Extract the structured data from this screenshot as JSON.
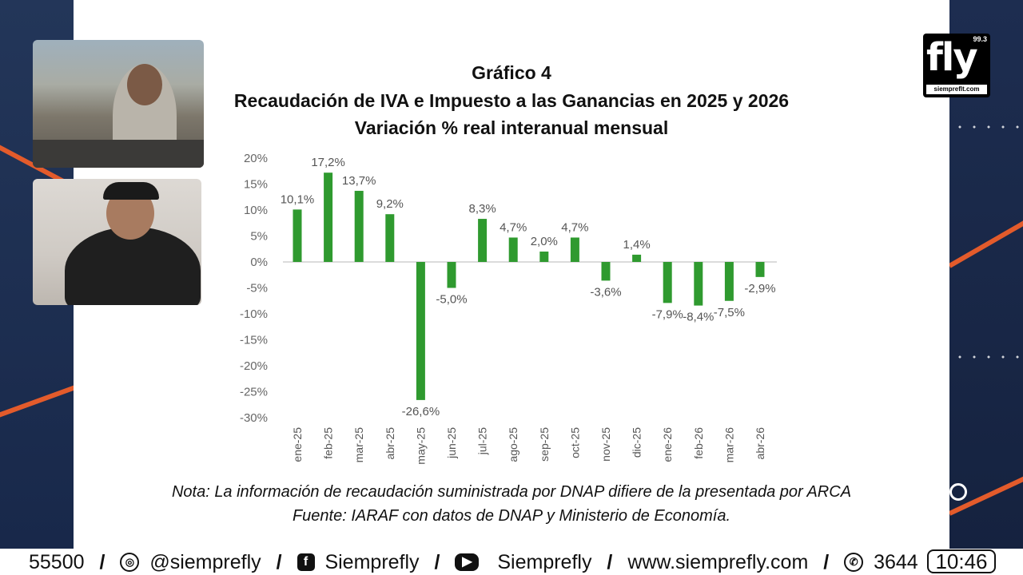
{
  "slide": {
    "title_line1": "Gráfico 4",
    "title_line2": "Recaudación de IVA e Impuesto a las Ganancias en 2025 y 2026",
    "title_line3": "Variación % real interanual mensual",
    "note": "Nota: La información de recaudación suministrada por DNAP difiere de la presentada por ARCA",
    "source": "Fuente: IARAF con datos de DNAP y Ministerio de Economía."
  },
  "chart_data": {
    "type": "bar",
    "title": "Gráfico 4",
    "subtitle": "Recaudación de IVA e Impuesto a las Ganancias en 2025 y 2026 — Variación % real interanual mensual",
    "xlabel": "",
    "ylabel": "",
    "categories": [
      "ene-25",
      "feb-25",
      "mar-25",
      "abr-25",
      "may-25",
      "jun-25",
      "jul-25",
      "ago-25",
      "sep-25",
      "oct-25",
      "nov-25",
      "dic-25",
      "ene-26",
      "feb-26",
      "mar-26",
      "abr-26"
    ],
    "values": [
      10.1,
      17.2,
      13.7,
      9.2,
      -26.6,
      -5.0,
      8.3,
      4.7,
      2.0,
      4.7,
      -3.6,
      1.4,
      -7.9,
      -8.4,
      -7.5,
      -2.9
    ],
    "data_labels": [
      "10,1%",
      "17,2%",
      "13,7%",
      "9,2%",
      "-26,6%",
      "-5,0%",
      "8,3%",
      "4,7%",
      "2,0%",
      "4,7%",
      "-3,6%",
      "1,4%",
      "-7,9%",
      "-8,4%",
      "-7,5%",
      "-2,9%"
    ],
    "ylim": [
      -30,
      20
    ],
    "yticks": [
      20,
      15,
      10,
      5,
      0,
      -5,
      -10,
      -15,
      -20,
      -25,
      -30
    ],
    "ytick_labels": [
      "20%",
      "15%",
      "10%",
      "5%",
      "0%",
      "-5%",
      "-10%",
      "-15%",
      "-20%",
      "-25%",
      "-30%"
    ],
    "bar_color": "#2f9a2f",
    "grid": false,
    "legend": "none"
  },
  "logo": {
    "text": "fly",
    "frequency": "99.3",
    "sub": "siempreflt.com"
  },
  "ticker": {
    "phone_start": "55500",
    "instagram": "@siemprefly",
    "facebook": "Siemprefly",
    "youtube": "Siemprefly",
    "website": "www.siemprefly.com",
    "whatsapp": "3644"
  },
  "clock": "10:46",
  "colors": {
    "accent": "#e35b2b",
    "navy": "#1b2a4a",
    "bar": "#2f9a2f"
  }
}
